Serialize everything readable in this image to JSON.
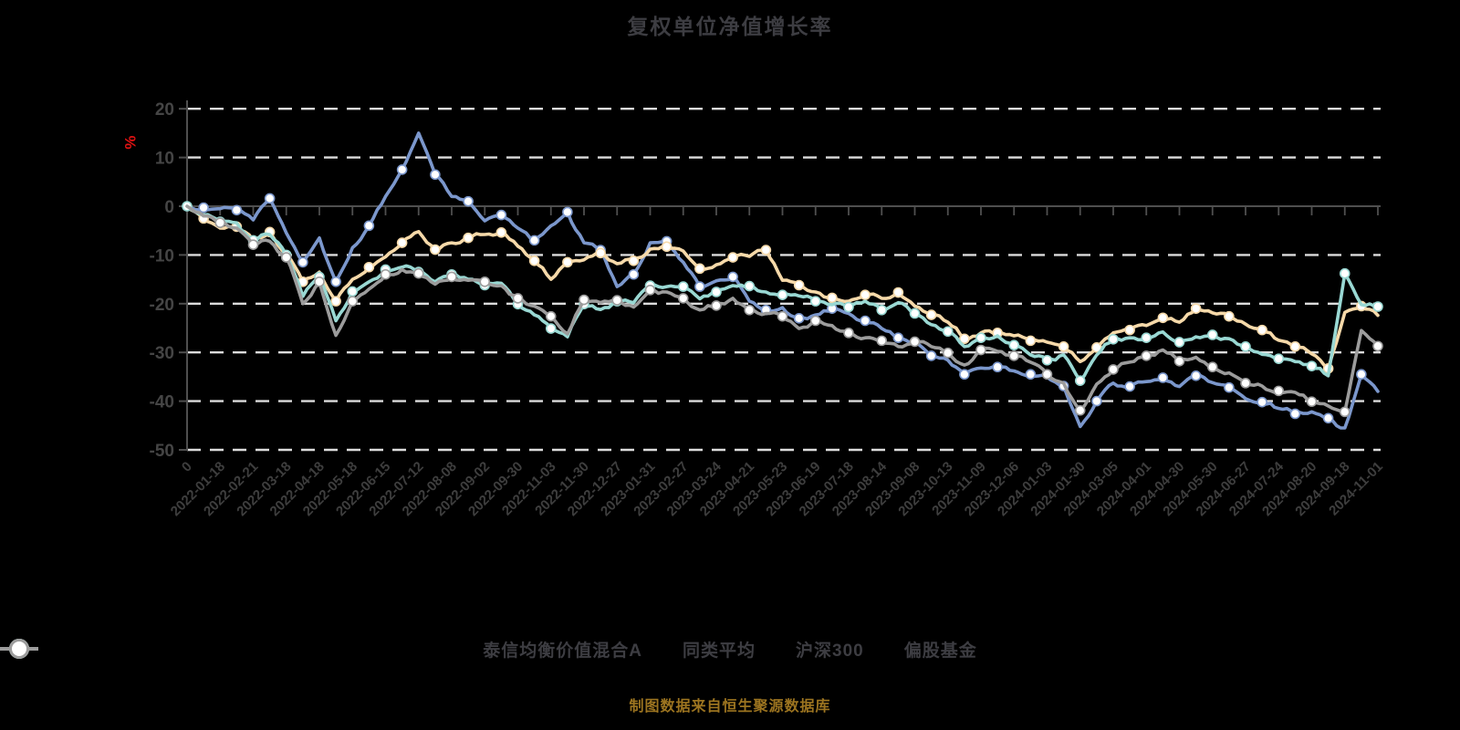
{
  "title": "复权单位净值增长率",
  "source_note": "制图数据来自恒生聚源数据库",
  "y_axis": {
    "unit_label": "%",
    "unit_color": "#e01212",
    "ticks": [
      20,
      10,
      0,
      -10,
      -20,
      -30,
      -40,
      -50
    ]
  },
  "colors": {
    "background": "#000000",
    "title_text": "#3d3d42",
    "axis_line": "#4f4f4f",
    "grid_line": "#dcdcdc",
    "tick_label": "#454545",
    "x_label": "#3e3e3e",
    "legend_text": "#3d3d42",
    "source_text": "#9c7420",
    "marker_fill": "#ffffff"
  },
  "chart_data": {
    "type": "line",
    "title": "复权单位净值增长率",
    "ylabel": "%",
    "ylim": [
      -50,
      20
    ],
    "grid": "horizontal dashed",
    "legend_position": "bottom",
    "points_per_label_interval": 2,
    "x_tick_labels": [
      "0",
      "2022-01-18",
      "2022-02-21",
      "2022-03-18",
      "2022-04-18",
      "2022-05-18",
      "2022-06-15",
      "2022-07-12",
      "2022-08-08",
      "2022-09-02",
      "2022-09-30",
      "2022-11-03",
      "2022-11-30",
      "2022-12-27",
      "2023-01-31",
      "2023-02-27",
      "2023-03-24",
      "2023-04-21",
      "2023-05-23",
      "2023-06-19",
      "2023-07-18",
      "2023-08-14",
      "2023-09-08",
      "2023-10-13",
      "2023-11-09",
      "2023-12-06",
      "2024-01-03",
      "2024-01-30",
      "2024-03-05",
      "2024-04-01",
      "2024-04-30",
      "2024-05-30",
      "2024-06-27",
      "2024-07-24",
      "2024-08-20",
      "2024-09-18",
      "2024-11-01"
    ],
    "series": [
      {
        "key": "fund-a",
        "name": "泰信均衡价值混合A",
        "color": "#7b97cc",
        "values": [
          0,
          -0.3,
          -0.5,
          -0.8,
          -2.8,
          1.6,
          -5.5,
          -11.5,
          -6.5,
          -15.5,
          -8.5,
          -4,
          2,
          7.5,
          15,
          6.5,
          2,
          1,
          -3,
          -1.8,
          -4.5,
          -7,
          -4,
          -1.2,
          -7.5,
          -9,
          -16.5,
          -14,
          -7.5,
          -7.2,
          -11.5,
          -16.5,
          -15.3,
          -14.5,
          -19.5,
          -21.3,
          -20.8,
          -23,
          -22.3,
          -21,
          -22,
          -23.5,
          -25.1,
          -27,
          -28,
          -30.7,
          -31.6,
          -34.5,
          -33.2,
          -33,
          -33.8,
          -34.5,
          -35.1,
          -36.9,
          -45.2,
          -40,
          -36.3,
          -37,
          -36,
          -35.2,
          -37,
          -34.8,
          -36.2,
          -37.2,
          -39.5,
          -40.2,
          -41.5,
          -42.6,
          -42.2,
          -43.5,
          -45.5,
          -34.5,
          -38
        ]
      },
      {
        "key": "category-average",
        "name": "同类平均",
        "color": "#f6d9a9",
        "values": [
          0,
          -2.5,
          -4.5,
          -4.2,
          -7,
          -5.3,
          -9.8,
          -15.5,
          -13.5,
          -19.5,
          -15,
          -12.5,
          -10.4,
          -7.5,
          -5.2,
          -8.9,
          -7.5,
          -6.5,
          -5.8,
          -5.4,
          -8.2,
          -11.2,
          -15,
          -11.5,
          -11,
          -9.6,
          -11.8,
          -11.2,
          -8.8,
          -8.3,
          -9.2,
          -12.8,
          -12,
          -10.5,
          -10.3,
          -9,
          -15.2,
          -16.2,
          -17.6,
          -18.8,
          -19.5,
          -18.2,
          -18.9,
          -17.7,
          -20.5,
          -22.3,
          -23.8,
          -27.2,
          -26,
          -26,
          -26.6,
          -27.6,
          -27.9,
          -28.8,
          -31.9,
          -29,
          -26,
          -25.4,
          -24.5,
          -22.9,
          -23.8,
          -21,
          -21.9,
          -22.6,
          -24.2,
          -25.4,
          -27.5,
          -28.8,
          -30.3,
          -33.3,
          -21.8,
          -20.5,
          -22.4
        ]
      },
      {
        "key": "csi300",
        "name": "沪深300",
        "color": "#99d8d3",
        "values": [
          0,
          -1.8,
          -3.2,
          -3.4,
          -7,
          -5.8,
          -10,
          -18.5,
          -14.5,
          -23.5,
          -17.5,
          -15.5,
          -13,
          -12.5,
          -13.5,
          -15.5,
          -14,
          -15,
          -16.2,
          -15.8,
          -20.1,
          -22.3,
          -25.1,
          -26.8,
          -20.1,
          -21.2,
          -19.5,
          -19.8,
          -16.3,
          -16.5,
          -16.5,
          -19,
          -17.6,
          -16.3,
          -16.4,
          -17.6,
          -18.2,
          -18.4,
          -19.5,
          -20.2,
          -20.7,
          -19.5,
          -21.3,
          -19.8,
          -22,
          -24.3,
          -25.7,
          -28.8,
          -27,
          -26.6,
          -28.5,
          -30.5,
          -31.6,
          -30.5,
          -35.8,
          -30.5,
          -27.3,
          -27,
          -27,
          -25.8,
          -27.9,
          -26.8,
          -26.4,
          -27.2,
          -28.8,
          -30.4,
          -31.3,
          -31.9,
          -32.8,
          -34.8,
          -13.8,
          -20.2,
          -20.6
        ]
      },
      {
        "key": "partial-equity-funds",
        "name": "偏股基金",
        "color": "#9c9c9c",
        "values": [
          0,
          -2,
          -3.4,
          -4.5,
          -7.9,
          -7.2,
          -10.5,
          -20,
          -15.5,
          -26.5,
          -19.5,
          -17,
          -14,
          -13,
          -13.8,
          -16,
          -14.5,
          -15.2,
          -15.5,
          -16.3,
          -18.9,
          -20.5,
          -22.6,
          -26.2,
          -19.2,
          -19.8,
          -19.3,
          -20.7,
          -17.2,
          -17.6,
          -18.9,
          -21.3,
          -20.4,
          -18.9,
          -21.3,
          -22,
          -22.6,
          -25.1,
          -23.5,
          -24.5,
          -26,
          -27,
          -27.6,
          -28.8,
          -27.8,
          -28.8,
          -30.1,
          -32.6,
          -29.5,
          -29.8,
          -30.7,
          -32,
          -34.5,
          -36.3,
          -41.9,
          -36.5,
          -33.5,
          -32,
          -30.7,
          -29.5,
          -31.8,
          -31,
          -33,
          -34.2,
          -36.3,
          -36.9,
          -37.9,
          -38.2,
          -40.1,
          -41,
          -42.2,
          -25.5,
          -28.7
        ]
      }
    ]
  },
  "legend": {
    "items": [
      {
        "label": "泰信均衡价值混合A"
      },
      {
        "label": "同类平均"
      },
      {
        "label": "沪深300"
      },
      {
        "label": "偏股基金"
      }
    ]
  }
}
